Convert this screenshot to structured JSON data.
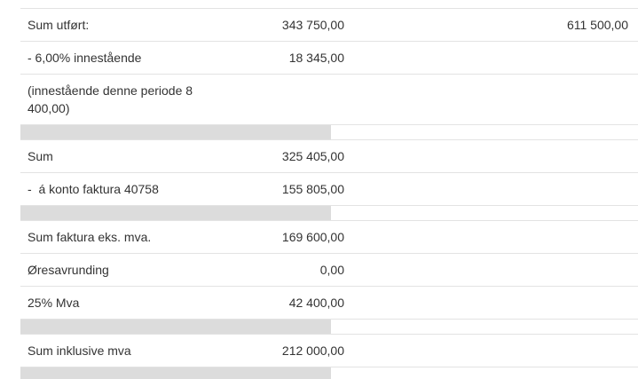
{
  "rows": [
    {
      "label": "Sum utført:",
      "amount": "343 750,00",
      "amount2": "611 500,00"
    },
    {
      "label": "- 6,00% innestående",
      "amount": "18 345,00"
    },
    {
      "label": "(innestående denne periode 8 400,00)"
    },
    {
      "label": "Sum",
      "amount": "325 405,00"
    },
    {
      "label": "-  á konto faktura 40758",
      "amount": "155 805,00"
    },
    {
      "label": "Sum faktura eks. mva.",
      "amount": "169 600,00"
    },
    {
      "label": "Øresavrunding",
      "amount": "0,00"
    },
    {
      "label": "25% Mva",
      "amount": "42 400,00"
    },
    {
      "label": "Sum inklusive mva",
      "amount": "212 000,00"
    }
  ]
}
